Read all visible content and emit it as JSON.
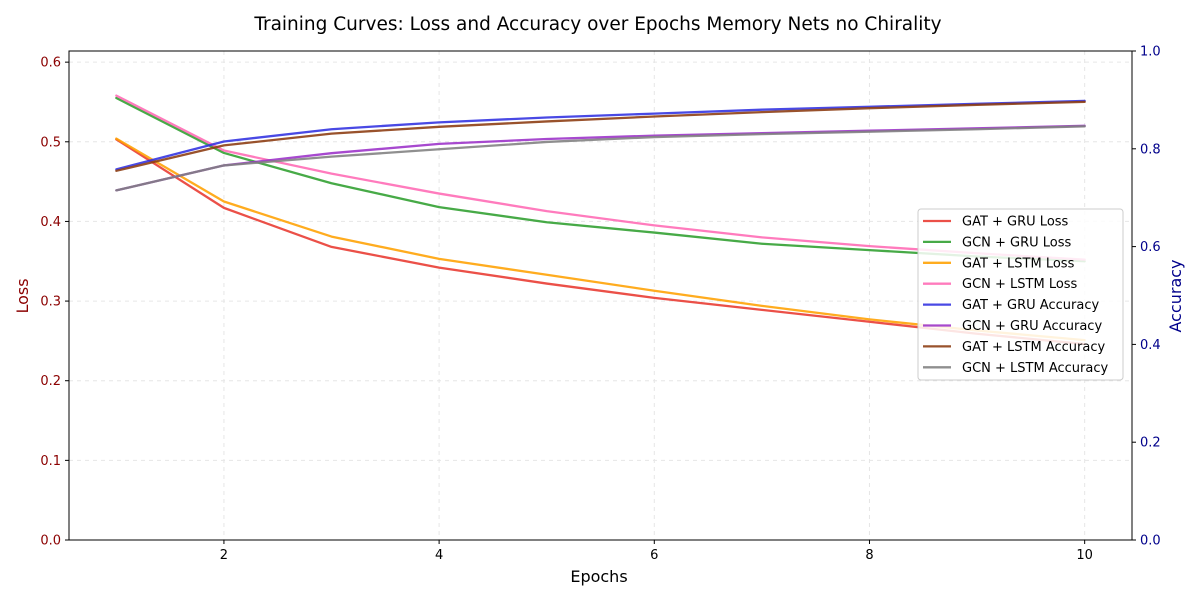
{
  "chart_data": {
    "type": "line",
    "title": "Training Curves: Loss and Accuracy over Epochs Memory Nets no Chirality",
    "xlabel": "Epochs",
    "ylabel_left": "Loss",
    "ylabel_right": "Accuracy",
    "xlim": [
      0.56,
      10.44
    ],
    "ylim_left": [
      0,
      0.614
    ],
    "ylim_right": [
      0,
      1.0
    ],
    "x_ticks": [
      2,
      4,
      6,
      8,
      10
    ],
    "y_left_ticks": [
      0.0,
      0.1,
      0.2,
      0.3,
      0.4,
      0.5,
      0.6
    ],
    "y_right_ticks": [
      0.0,
      0.2,
      0.4,
      0.6,
      0.8,
      1.0
    ],
    "left_axis_color": "#8b0000",
    "right_axis_color": "#00008b",
    "grid": true,
    "legend_position": "center-right",
    "x": [
      1,
      2,
      3,
      4,
      5,
      6,
      7,
      8,
      9,
      10
    ],
    "series": [
      {
        "name": "GAT + GRU Loss",
        "axis": "left",
        "color": "#e8382f",
        "values": [
          0.503,
          0.417,
          0.368,
          0.342,
          0.322,
          0.304,
          0.289,
          0.274,
          0.259,
          0.246
        ]
      },
      {
        "name": "GCN + GRU Loss",
        "axis": "left",
        "color": "#2e9e2e",
        "values": [
          0.555,
          0.486,
          0.448,
          0.418,
          0.399,
          0.386,
          0.372,
          0.364,
          0.356,
          0.35
        ]
      },
      {
        "name": "GAT + LSTM Loss",
        "axis": "left",
        "color": "#ffa000",
        "values": [
          0.504,
          0.425,
          0.381,
          0.353,
          0.333,
          0.313,
          0.294,
          0.277,
          0.263,
          0.251
        ]
      },
      {
        "name": "GCN + LSTM Loss",
        "axis": "left",
        "color": "#ff69b4",
        "values": [
          0.558,
          0.489,
          0.46,
          0.435,
          0.413,
          0.395,
          0.38,
          0.369,
          0.36,
          0.352
        ]
      },
      {
        "name": "GAT + GRU Accuracy",
        "axis": "right",
        "color": "#3030e0",
        "values": [
          0.758,
          0.815,
          0.84,
          0.854,
          0.864,
          0.872,
          0.88,
          0.886,
          0.892,
          0.898
        ]
      },
      {
        "name": "GCN + GRU Accuracy",
        "axis": "right",
        "color": "#9b30c8",
        "values": [
          0.715,
          0.766,
          0.791,
          0.81,
          0.82,
          0.827,
          0.832,
          0.837,
          0.842,
          0.847
        ]
      },
      {
        "name": "GAT + LSTM Accuracy",
        "axis": "right",
        "color": "#8b3a0f",
        "values": [
          0.755,
          0.807,
          0.831,
          0.845,
          0.856,
          0.866,
          0.875,
          0.883,
          0.89,
          0.896
        ]
      },
      {
        "name": "GCN + LSTM Accuracy",
        "axis": "right",
        "color": "#808080",
        "values": [
          0.715,
          0.766,
          0.784,
          0.799,
          0.814,
          0.824,
          0.83,
          0.835,
          0.84,
          0.846
        ]
      }
    ]
  }
}
